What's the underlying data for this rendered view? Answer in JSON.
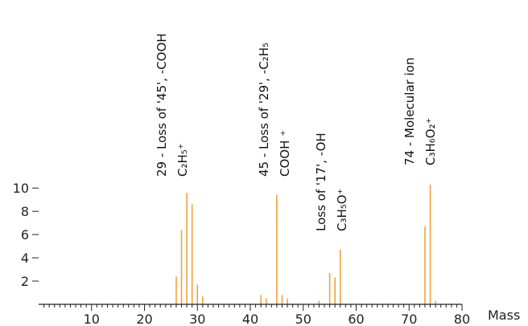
{
  "chart_data": {
    "type": "bar",
    "xlabel": "Mass",
    "ylabel": "",
    "xlim": [
      0,
      80
    ],
    "ylim": [
      0,
      10.5
    ],
    "x_ticks": [
      10,
      20,
      30,
      40,
      50,
      60,
      70,
      80
    ],
    "y_ticks": [
      2,
      4,
      6,
      8,
      10
    ],
    "grid": false,
    "bar_color": "#f2a23a",
    "series": [
      {
        "x": [
          26,
          27,
          28,
          29,
          30,
          31,
          42,
          43,
          45,
          46,
          47,
          53,
          55,
          56,
          57,
          73,
          74,
          75
        ],
        "values": [
          2.4,
          6.4,
          9.6,
          8.6,
          1.7,
          0.7,
          0.8,
          0.5,
          9.4,
          0.8,
          0.5,
          0.3,
          2.7,
          2.3,
          4.7,
          6.7,
          10.3,
          0.3
        ]
      }
    ],
    "annotations": [
      {
        "lines": [
          "29 - Loss of '45', -COOH",
          "C₂H₅⁺"
        ]
      },
      {
        "lines": [
          "45 - Loss of '29',   -C₂H₅",
          "COOH ⁺"
        ]
      },
      {
        "lines": [
          "Loss of '17', -OH",
          "C₃H₅O⁺"
        ]
      },
      {
        "lines": [
          "74 - Molecular ion",
          "C₃H₆O₂⁺"
        ]
      }
    ]
  }
}
